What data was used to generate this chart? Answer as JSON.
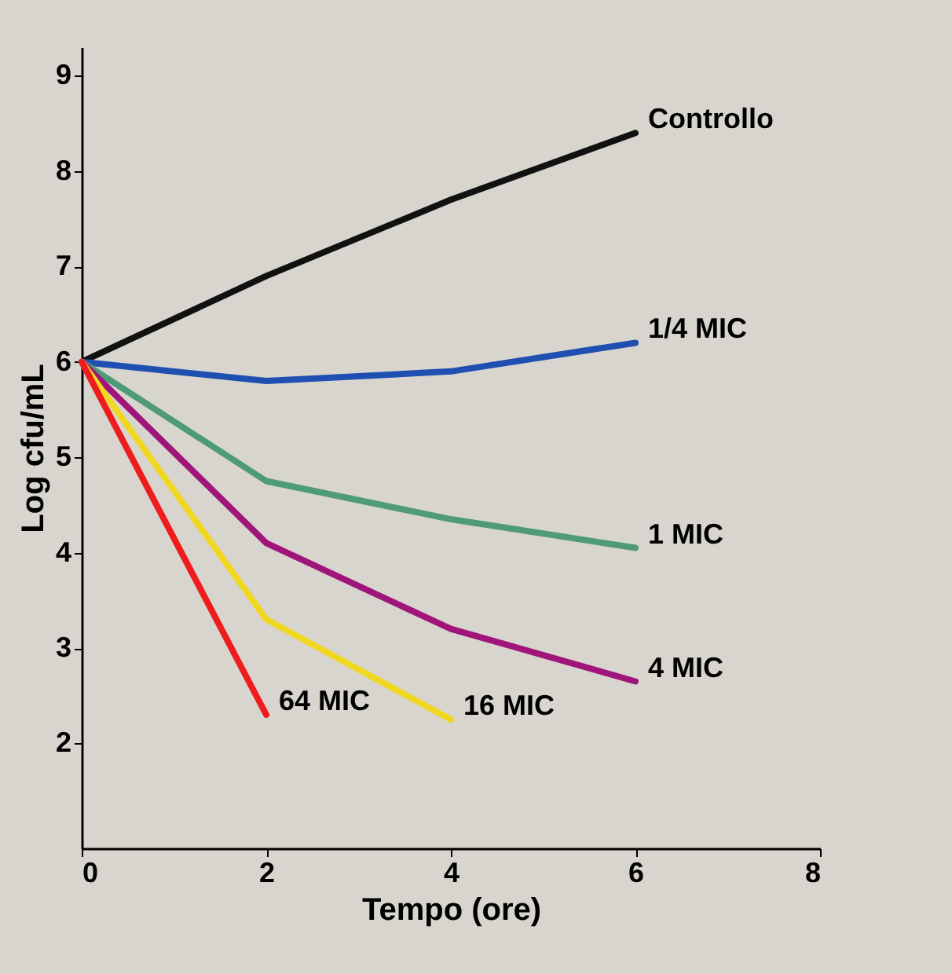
{
  "chart_data": {
    "type": "line",
    "xlabel": "Tempo (ore)",
    "ylabel": "Log cfu/mL",
    "x": [
      0,
      2,
      4,
      6
    ],
    "series": [
      {
        "name": "Controllo",
        "color": "#111111",
        "values": [
          6,
          6.9,
          7.7,
          8.4
        ]
      },
      {
        "name": "1/4 MIC",
        "color": "#1f4fb0",
        "values": [
          6,
          5.8,
          5.9,
          6.2
        ]
      },
      {
        "name": "1 MIC",
        "color": "#4f9a78",
        "values": [
          6,
          4.75,
          4.35,
          4.05
        ]
      },
      {
        "name": "4 MIC",
        "color": "#a0157a",
        "values": [
          6,
          4.1,
          3.2,
          2.65
        ]
      },
      {
        "name": "16 MIC",
        "color": "#f0d820",
        "values": [
          6,
          3.3,
          2.25,
          null
        ]
      },
      {
        "name": "64 MIC",
        "color": "#ee1c1c",
        "values": [
          6,
          2.3,
          null,
          null
        ]
      }
    ],
    "xlim": [
      0,
      8
    ],
    "xticks": [
      0,
      2,
      4,
      6,
      8
    ],
    "ylim": [
      0.9,
      9.3
    ],
    "yticks": [
      2,
      3,
      4,
      5,
      6,
      7,
      8,
      9
    ],
    "grid": false,
    "legend": false,
    "marker": "none",
    "line_style": "solid"
  }
}
